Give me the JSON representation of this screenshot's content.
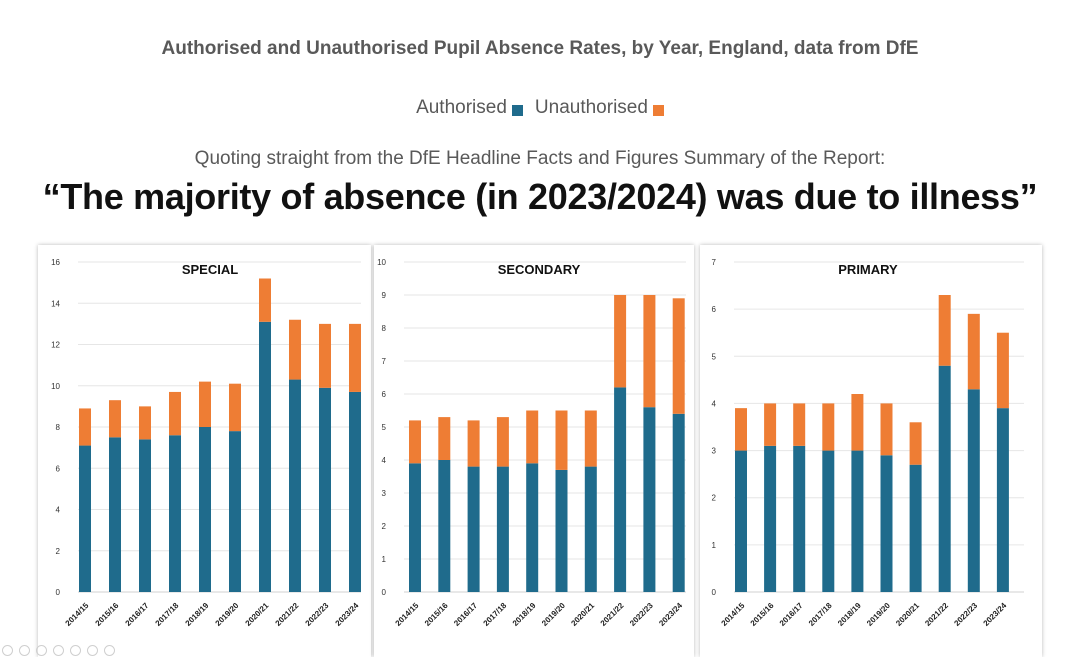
{
  "title": "Authorised and Unauthorised Pupil Absence Rates, by Year, England, data from DfE",
  "legend": {
    "authorised": "Authorised",
    "unauthorised": "Unauthorised"
  },
  "quote_intro": "Quoting straight from the DfE Headline Facts and Figures Summary of the Report:",
  "quote": "“The majority of absence (in 2023/2024) was due to illness”",
  "colors": {
    "authorised": "#1f6b8c",
    "unauthorised": "#ee7d34",
    "text": "#595959",
    "grid": "#e6e6e6"
  },
  "chart_data": [
    {
      "type": "bar",
      "stacked": true,
      "title": "SPECIAL",
      "categories": [
        "2014/15",
        "2015/16",
        "2016/17",
        "2017/18",
        "2018/19",
        "2019/20",
        "2020/21",
        "2021/22",
        "2022/23",
        "2023/24"
      ],
      "series": [
        {
          "name": "Authorised",
          "values": [
            7.1,
            7.5,
            7.4,
            7.6,
            8.0,
            7.8,
            13.1,
            10.3,
            9.9,
            9.7
          ]
        },
        {
          "name": "Unauthorised",
          "values": [
            1.8,
            1.8,
            1.6,
            2.1,
            2.2,
            2.3,
            2.1,
            2.9,
            3.1,
            3.3
          ]
        }
      ],
      "ylim": [
        0,
        16
      ],
      "yticks": [
        "0",
        "2",
        "4",
        "6",
        "8",
        "10",
        "12",
        "14",
        "16"
      ],
      "grid": true
    },
    {
      "type": "bar",
      "stacked": true,
      "title": "SECONDARY",
      "categories": [
        "2014/15",
        "2015/16",
        "2016/17",
        "2017/18",
        "2018/19",
        "2019/20",
        "2020/21",
        "2021/22",
        "2022/23",
        "2023/24"
      ],
      "series": [
        {
          "name": "Authorised",
          "values": [
            3.9,
            4.0,
            3.8,
            3.8,
            3.9,
            3.7,
            3.8,
            6.2,
            5.6,
            5.4
          ]
        },
        {
          "name": "Unauthorised",
          "values": [
            1.3,
            1.3,
            1.4,
            1.5,
            1.6,
            1.8,
            1.7,
            2.8,
            3.4,
            3.5
          ]
        }
      ],
      "ylim": [
        0,
        10
      ],
      "yticks": [
        "0",
        "1",
        "2",
        "3",
        "4",
        "5",
        "6",
        "7",
        "8",
        "9",
        "10"
      ],
      "grid": true
    },
    {
      "type": "bar",
      "stacked": true,
      "title": "PRIMARY",
      "categories": [
        "2014/15",
        "2015/16",
        "2016/17",
        "2017/18",
        "2018/19",
        "2019/20",
        "2020/21",
        "2021/22",
        "2022/23",
        "2023/24"
      ],
      "series": [
        {
          "name": "Authorised",
          "values": [
            3.0,
            3.1,
            3.1,
            3.0,
            3.0,
            2.9,
            2.7,
            4.8,
            4.3,
            3.9
          ]
        },
        {
          "name": "Unauthorised",
          "values": [
            0.9,
            0.9,
            0.9,
            1.0,
            1.2,
            1.1,
            0.9,
            1.5,
            1.6,
            1.6
          ]
        }
      ],
      "ylim": [
        0,
        7
      ],
      "yticks": [
        "0",
        "1",
        "2",
        "3",
        "4",
        "5",
        "6",
        "7"
      ],
      "grid": true
    }
  ]
}
